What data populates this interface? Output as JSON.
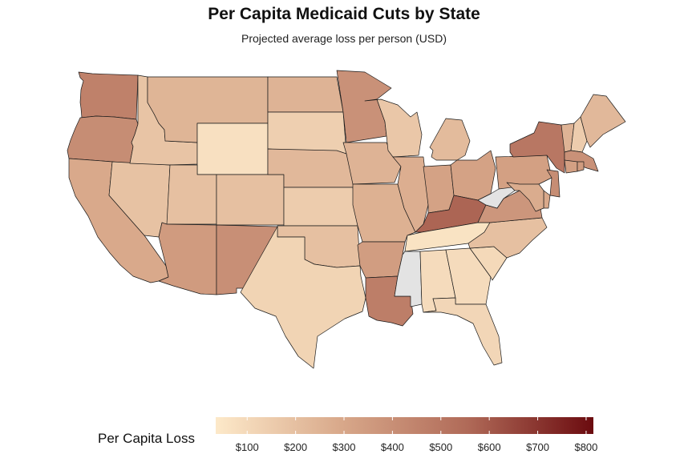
{
  "title": "Per Capita Medicaid Cuts by State",
  "subtitle": "Projected average loss per person (USD)",
  "legend": {
    "title": "Per Capita Loss",
    "min": 35,
    "max": 815,
    "ticks": [
      {
        "value": 100,
        "label": "$100"
      },
      {
        "value": 200,
        "label": "$200"
      },
      {
        "value": 300,
        "label": "$300"
      },
      {
        "value": 400,
        "label": "$400"
      },
      {
        "value": 500,
        "label": "$500"
      },
      {
        "value": 600,
        "label": "$600"
      },
      {
        "value": 700,
        "label": "$700"
      },
      {
        "value": 800,
        "label": "$800"
      }
    ],
    "colors": [
      "#fde9c9",
      "#d8a88a",
      "#b06a58",
      "#6b0b0f"
    ],
    "missing_color": "#e3e3e3"
  },
  "states": [
    {
      "name": "WA",
      "value": 460
    },
    {
      "name": "OR",
      "value": 410
    },
    {
      "name": "CA",
      "value": 290
    },
    {
      "name": "NV",
      "value": 190
    },
    {
      "name": "ID",
      "value": 185
    },
    {
      "name": "MT",
      "value": 245
    },
    {
      "name": "WY",
      "value": 70
    },
    {
      "name": "UT",
      "value": 200
    },
    {
      "name": "CO",
      "value": 200
    },
    {
      "name": "AZ",
      "value": 350
    },
    {
      "name": "NM",
      "value": 400
    },
    {
      "name": "ND",
      "value": 250
    },
    {
      "name": "SD",
      "value": 140
    },
    {
      "name": "NE",
      "value": 230
    },
    {
      "name": "KS",
      "value": 150
    },
    {
      "name": "OK",
      "value": 200
    },
    {
      "name": "TX",
      "value": 120
    },
    {
      "name": "MN",
      "value": 390
    },
    {
      "name": "IA",
      "value": 250
    },
    {
      "name": "MO",
      "value": 260
    },
    {
      "name": "AR",
      "value": 340
    },
    {
      "name": "LA",
      "value": 470
    },
    {
      "name": "WI",
      "value": 170
    },
    {
      "name": "IL",
      "value": 270
    },
    {
      "name": "MI",
      "value": 220
    },
    {
      "name": "IN",
      "value": 320
    },
    {
      "name": "OH",
      "value": 320
    },
    {
      "name": "KY",
      "value": 570
    },
    {
      "name": "TN",
      "value": 60
    },
    {
      "name": "MS",
      "value": null
    },
    {
      "name": "AL",
      "value": 90
    },
    {
      "name": "GA",
      "value": 90
    },
    {
      "name": "FL",
      "value": 110
    },
    {
      "name": "SC",
      "value": 100
    },
    {
      "name": "NC",
      "value": 200
    },
    {
      "name": "VA",
      "value": 370
    },
    {
      "name": "WV",
      "value": null
    },
    {
      "name": "PA",
      "value": 330
    },
    {
      "name": "NY",
      "value": 500
    },
    {
      "name": "VT",
      "value": 250
    },
    {
      "name": "NH",
      "value": 150
    },
    {
      "name": "ME",
      "value": 230
    },
    {
      "name": "MA",
      "value": 390
    },
    {
      "name": "CT",
      "value": 330
    },
    {
      "name": "RI",
      "value": 350
    },
    {
      "name": "NJ",
      "value": 410
    },
    {
      "name": "DE",
      "value": 290
    },
    {
      "name": "MD",
      "value": 280
    }
  ]
}
